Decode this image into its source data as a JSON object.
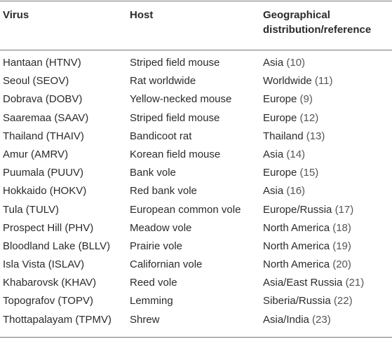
{
  "table": {
    "headers": {
      "virus": "Virus",
      "host": "Host",
      "geo_line1": "Geographical",
      "geo_line2": "distribution/reference"
    },
    "rows": [
      {
        "virus": "Hantaan (HTNV)",
        "host": "Striped field mouse",
        "geo": "Asia",
        "ref": "(10)"
      },
      {
        "virus": "Seoul (SEOV)",
        "host": "Rat worldwide",
        "geo": "Worldwide",
        "ref": "(11)"
      },
      {
        "virus": "Dobrava (DOBV)",
        "host": "Yellow-necked mouse",
        "geo": "Europe",
        "ref": "(9)"
      },
      {
        "virus": "Saaremaa (SAAV)",
        "host": "Striped field mouse",
        "geo": "Europe",
        "ref": "(12)"
      },
      {
        "virus": "Thailand (THAIV)",
        "host": "Bandicoot rat",
        "geo": "Thailand",
        "ref": "(13)"
      },
      {
        "virus": "Amur (AMRV)",
        "host": "Korean field mouse",
        "geo": "Asia",
        "ref": "(14)"
      },
      {
        "virus": "Puumala (PUUV)",
        "host": "Bank vole",
        "geo": "Europe",
        "ref": "(15)"
      },
      {
        "virus": "Hokkaido (HOKV)",
        "host": "Red bank vole",
        "geo": "Asia",
        "ref": "(16)"
      },
      {
        "virus": "Tula (TULV)",
        "host": "European common vole",
        "geo": "Europe/Russia",
        "ref": "(17)"
      },
      {
        "virus": "Prospect Hill (PHV)",
        "host": "Meadow vole",
        "geo": "North America",
        "ref": "(18)"
      },
      {
        "virus": "Bloodland Lake (BLLV)",
        "host": "Prairie vole",
        "geo": "North America",
        "ref": "(19)"
      },
      {
        "virus": "Isla Vista (ISLAV)",
        "host": "Californian vole",
        "geo": "North America",
        "ref": "(20)"
      },
      {
        "virus": "Khabarovsk (KHAV)",
        "host": "Reed vole",
        "geo": "Asia/East Russia",
        "ref": "(21)"
      },
      {
        "virus": "Topografov (TOPV)",
        "host": "Lemming",
        "geo": "Siberia/Russia",
        "ref": "(22)"
      },
      {
        "virus": "Thottapalayam (TPMV)",
        "host": "Shrew",
        "geo": "Asia/India",
        "ref": "(23)"
      }
    ]
  }
}
